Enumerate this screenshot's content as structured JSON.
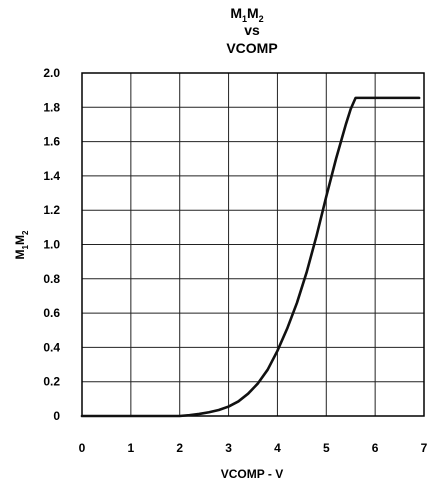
{
  "chart_data": {
    "type": "line",
    "title": {
      "line1_base_1": "M",
      "line1_sub_1": "1",
      "line1_base_2": "M",
      "line1_sub_2": "2",
      "line2": "vs",
      "line3": "VCOMP"
    },
    "xlabel": "VCOMP  - V",
    "ylabel": {
      "base_1": "M",
      "sub_1": "1",
      "base_2": "M",
      "sub_2": "2"
    },
    "xlim": [
      0,
      7
    ],
    "ylim": [
      0,
      2.0
    ],
    "grid": true,
    "x_ticks": [
      "0",
      "1",
      "2",
      "3",
      "4",
      "5",
      "6",
      "7"
    ],
    "y_ticks": [
      "0",
      "0.2",
      "0.4",
      "0.6",
      "0.8",
      "1.0",
      "1.2",
      "1.4",
      "1.6",
      "1.8",
      "2.0"
    ],
    "series": [
      {
        "x": [
          0,
          1,
          2,
          2.2,
          2.4,
          2.6,
          2.8,
          3.0,
          3.2,
          3.4,
          3.6,
          3.8,
          4.0,
          4.2,
          4.4,
          4.6,
          4.8,
          5.0,
          5.2,
          5.4,
          5.5,
          5.6,
          6.0,
          6.5,
          6.9
        ],
        "y": [
          0,
          0,
          0,
          0.005,
          0.012,
          0.022,
          0.035,
          0.055,
          0.085,
          0.13,
          0.19,
          0.27,
          0.38,
          0.51,
          0.66,
          0.84,
          1.05,
          1.28,
          1.5,
          1.7,
          1.79,
          1.855,
          1.855,
          1.855,
          1.855
        ]
      }
    ]
  }
}
